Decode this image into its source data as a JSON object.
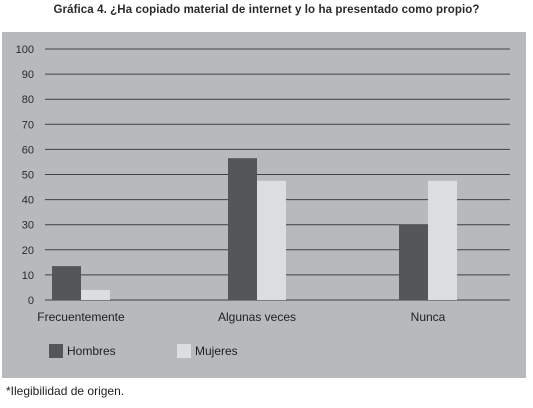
{
  "page": {
    "title": "Gráfica 4. ¿Ha copiado material de internet y lo ha presentado como propio?",
    "footnote": "*Ilegibilidad de origen."
  },
  "colors": {
    "background_panel": "#b7b9bd",
    "gridline": "#3f4145",
    "Hombres": "#545659",
    "Mujeres": "#dcdddf"
  },
  "chart_data": {
    "type": "bar",
    "title": "Gráfica 4. ¿Ha copiado material de internet y lo ha presentado como propio?",
    "xlabel": "",
    "ylabel": "",
    "categories": [
      "Frecuentemente",
      "Algunas veces",
      "Nunca"
    ],
    "series": [
      {
        "name": "Hombres",
        "values": [
          13.5,
          56.5,
          30
        ]
      },
      {
        "name": "Mujeres",
        "values": [
          4,
          47.5,
          47.5
        ]
      }
    ],
    "ylim": [
      0,
      100
    ],
    "yticks": [
      0,
      10,
      20,
      30,
      40,
      50,
      60,
      70,
      80,
      90,
      100
    ],
    "grid": true,
    "legend_position": "bottom-left"
  }
}
